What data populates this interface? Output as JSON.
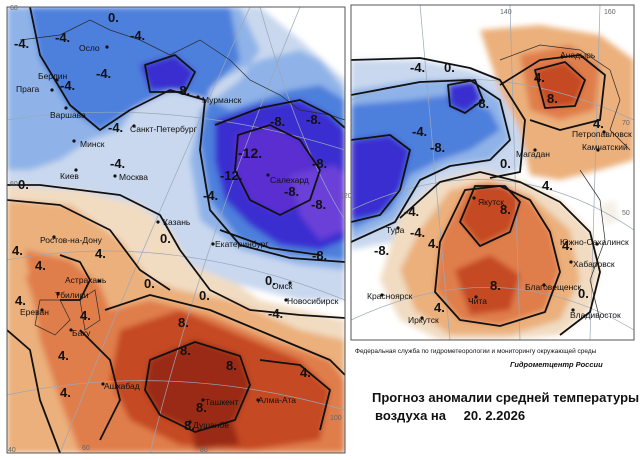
{
  "title": {
    "line1": "Прогноз аномалии средней температуры",
    "line2_prefix": "воздуха на",
    "date": "20. 2.2026"
  },
  "credits": {
    "agency": "Федеральная служба по гидрометеорологии и мониторингу окружающей среды",
    "center": "Гидрометцентр России"
  },
  "colors": {
    "strong_cold": "#3a2fd0",
    "cold": "#4d7fdc",
    "cool": "#8fb3e8",
    "slight_cool": "#c9d8ee",
    "slight_warm": "#f1dcc2",
    "warm": "#ebb07c",
    "warmer": "#e07e4c",
    "hot": "#c54a23",
    "very_hot": "#9a2a14"
  },
  "degree_labels": [
    "40",
    "60",
    "80",
    "100",
    "120",
    "140",
    "160",
    "60",
    "70",
    "50",
    "60"
  ],
  "west_cities": [
    "Осло",
    "Берлин",
    "Прага",
    "Варшава",
    "Минск",
    "Киев",
    "Москва",
    "Санкт-Петербург",
    "Мурманск",
    "Салехард",
    "Казань",
    "Екатеринбург",
    "Ростов-на-Дону",
    "Астрахань",
    "Тбилиси",
    "Ереван",
    "Баку",
    "Омск",
    "Новосибирск",
    "Ашхабад",
    "Ташкент",
    "Алма-Ата",
    "Душанбе"
  ],
  "east_cities": [
    "Анадырь",
    "Петропавловск",
    "Магадан",
    "Камчатский",
    "Якутск",
    "Тура",
    "Южно-Сахалинск",
    "Хабаровск",
    "Красноярск",
    "Благовещенск",
    "Чита",
    "Иркутск",
    "Владивосток"
  ],
  "isoline_labels_west": [
    "0.",
    "-4.",
    "-4.",
    "-4.",
    "-4.",
    "-4.",
    "-4.",
    "-8.",
    "-8.",
    "-8.",
    "-12.",
    "-12.",
    "-8.",
    "-8.",
    "-8.",
    "-4.",
    "-4.",
    "0.",
    "0.",
    "0.",
    "0.",
    "4.",
    "4.",
    "4.",
    "4.",
    "4.",
    "4.",
    "0.",
    "8.",
    "8.",
    "8.",
    "8.",
    "8.",
    "4.",
    "4.",
    "-8.",
    "-4."
  ],
  "isoline_labels_east": [
    "0.",
    "-4.",
    "-8.",
    "4.",
    "8.",
    "4.",
    "-4.",
    "-8.",
    "-8.",
    "-4.",
    "-4.",
    "0.",
    "4.",
    "4.",
    "8.",
    "4.",
    "8.",
    "4.",
    "0."
  ]
}
